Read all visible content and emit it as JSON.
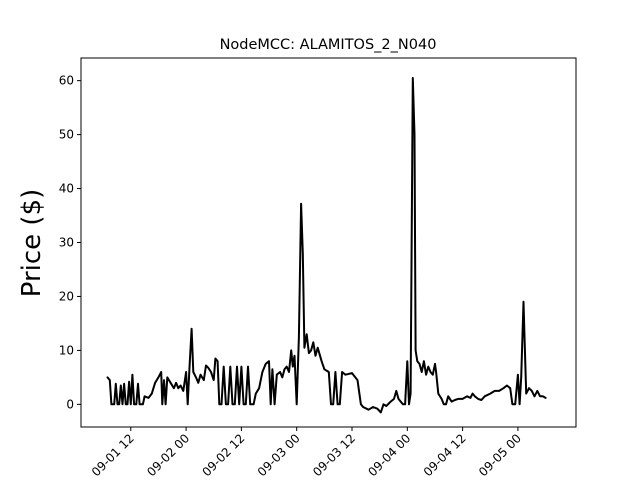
{
  "chart_data": {
    "type": "line",
    "title": "NodeMCC: ALAMITOS_2_N040",
    "xlabel": "",
    "ylabel": "Price ($)",
    "ylim": [
      -4.2,
      64.2
    ],
    "xlim": [
      -0.9,
      8.05
    ],
    "grid": false,
    "x_ticks": [
      {
        "value": 0,
        "label": "09-01 12"
      },
      {
        "value": 1,
        "label": "09-02 00"
      },
      {
        "value": 2,
        "label": "09-02 12"
      },
      {
        "value": 3,
        "label": "09-03 00"
      },
      {
        "value": 4,
        "label": "09-03 12"
      },
      {
        "value": 5,
        "label": "09-04 00"
      },
      {
        "value": 6,
        "label": "09-04 12"
      },
      {
        "value": 7,
        "label": "09-05 00"
      }
    ],
    "y_ticks": [
      0,
      10,
      20,
      30,
      40,
      50,
      60
    ],
    "x_unit": "x is time in units of 12 hours; 0 = 2019-09-01 12:00",
    "series": [
      {
        "name": "",
        "color": "#000000",
        "points": [
          [
            -0.42,
            5.0
          ],
          [
            -0.38,
            4.5
          ],
          [
            -0.35,
            0.0
          ],
          [
            -0.3,
            0.0
          ],
          [
            -0.27,
            3.8
          ],
          [
            -0.24,
            0.0
          ],
          [
            -0.21,
            0.0
          ],
          [
            -0.18,
            3.5
          ],
          [
            -0.15,
            0.0
          ],
          [
            -0.12,
            3.8
          ],
          [
            -0.09,
            0.0
          ],
          [
            -0.06,
            0.0
          ],
          [
            -0.03,
            4.2
          ],
          [
            0.0,
            0.0
          ],
          [
            0.03,
            5.5
          ],
          [
            0.06,
            0.0
          ],
          [
            0.1,
            0.0
          ],
          [
            0.13,
            3.8
          ],
          [
            0.16,
            0.0
          ],
          [
            0.22,
            0.0
          ],
          [
            0.25,
            1.5
          ],
          [
            0.32,
            1.2
          ],
          [
            0.38,
            2.0
          ],
          [
            0.44,
            4.0
          ],
          [
            0.5,
            5.0
          ],
          [
            0.55,
            6.0
          ],
          [
            0.57,
            0.0
          ],
          [
            0.6,
            4.5
          ],
          [
            0.63,
            0.0
          ],
          [
            0.66,
            5.0
          ],
          [
            0.72,
            4.0
          ],
          [
            0.78,
            3.0
          ],
          [
            0.82,
            4.0
          ],
          [
            0.86,
            3.0
          ],
          [
            0.9,
            3.5
          ],
          [
            0.95,
            2.5
          ],
          [
            1.0,
            6.0
          ],
          [
            1.03,
            0.0
          ],
          [
            1.06,
            6.5
          ],
          [
            1.1,
            14.0
          ],
          [
            1.13,
            6.0
          ],
          [
            1.18,
            5.0
          ],
          [
            1.22,
            4.0
          ],
          [
            1.26,
            5.5
          ],
          [
            1.32,
            4.5
          ],
          [
            1.36,
            7.2
          ],
          [
            1.4,
            6.8
          ],
          [
            1.45,
            6.0
          ],
          [
            1.5,
            4.5
          ],
          [
            1.53,
            8.5
          ],
          [
            1.57,
            8.0
          ],
          [
            1.6,
            0.0
          ],
          [
            1.64,
            0.0
          ],
          [
            1.68,
            7.0
          ],
          [
            1.72,
            0.0
          ],
          [
            1.76,
            0.0
          ],
          [
            1.8,
            7.0
          ],
          [
            1.84,
            0.0
          ],
          [
            1.88,
            0.0
          ],
          [
            1.92,
            7.0
          ],
          [
            1.96,
            0.0
          ],
          [
            2.0,
            7.0
          ],
          [
            2.04,
            0.0
          ],
          [
            2.08,
            0.0
          ],
          [
            2.12,
            7.0
          ],
          [
            2.16,
            0.0
          ],
          [
            2.22,
            0.0
          ],
          [
            2.26,
            2.0
          ],
          [
            2.32,
            3.0
          ],
          [
            2.38,
            6.0
          ],
          [
            2.44,
            7.5
          ],
          [
            2.5,
            8.0
          ],
          [
            2.53,
            0.0
          ],
          [
            2.56,
            6.5
          ],
          [
            2.6,
            0.0
          ],
          [
            2.64,
            5.5
          ],
          [
            2.7,
            6.0
          ],
          [
            2.74,
            5.0
          ],
          [
            2.78,
            6.5
          ],
          [
            2.82,
            7.0
          ],
          [
            2.86,
            6.0
          ],
          [
            2.9,
            10.0
          ],
          [
            2.93,
            7.0
          ],
          [
            2.96,
            9.0
          ],
          [
            3.0,
            0.0
          ],
          [
            3.04,
            12.5
          ],
          [
            3.08,
            37.2
          ],
          [
            3.11,
            28.0
          ],
          [
            3.14,
            10.5
          ],
          [
            3.18,
            13.0
          ],
          [
            3.22,
            9.5
          ],
          [
            3.26,
            10.0
          ],
          [
            3.3,
            11.5
          ],
          [
            3.34,
            9.0
          ],
          [
            3.38,
            10.5
          ],
          [
            3.45,
            8.0
          ],
          [
            3.5,
            6.5
          ],
          [
            3.58,
            6.0
          ],
          [
            3.62,
            0.0
          ],
          [
            3.66,
            0.0
          ],
          [
            3.7,
            6.0
          ],
          [
            3.74,
            0.0
          ],
          [
            3.78,
            0.0
          ],
          [
            3.82,
            6.0
          ],
          [
            3.88,
            5.5
          ],
          [
            4.0,
            5.8
          ],
          [
            4.1,
            4.5
          ],
          [
            4.16,
            0.0
          ],
          [
            4.2,
            -0.5
          ],
          [
            4.3,
            -1.0
          ],
          [
            4.38,
            -0.5
          ],
          [
            4.46,
            -0.8
          ],
          [
            4.52,
            -1.5
          ],
          [
            4.57,
            0.0
          ],
          [
            4.62,
            -0.3
          ],
          [
            4.7,
            0.5
          ],
          [
            4.76,
            1.0
          ],
          [
            4.8,
            2.5
          ],
          [
            4.84,
            1.0
          ],
          [
            4.88,
            0.5
          ],
          [
            4.92,
            0.0
          ],
          [
            4.96,
            0.0
          ],
          [
            5.0,
            8.0
          ],
          [
            5.03,
            0.0
          ],
          [
            5.06,
            2.0
          ],
          [
            5.1,
            60.5
          ],
          [
            5.13,
            50.0
          ],
          [
            5.15,
            10.0
          ],
          [
            5.18,
            8.0
          ],
          [
            5.22,
            7.5
          ],
          [
            5.26,
            6.0
          ],
          [
            5.3,
            8.0
          ],
          [
            5.34,
            5.5
          ],
          [
            5.38,
            7.0
          ],
          [
            5.42,
            6.0
          ],
          [
            5.46,
            5.5
          ],
          [
            5.5,
            7.5
          ],
          [
            5.52,
            6.0
          ],
          [
            5.56,
            2.0
          ],
          [
            5.62,
            1.0
          ],
          [
            5.66,
            0.0
          ],
          [
            5.7,
            0.0
          ],
          [
            5.74,
            1.5
          ],
          [
            5.8,
            0.5
          ],
          [
            5.86,
            0.8
          ],
          [
            5.92,
            1.0
          ],
          [
            6.0,
            1.0
          ],
          [
            6.08,
            1.5
          ],
          [
            6.14,
            1.2
          ],
          [
            6.18,
            2.0
          ],
          [
            6.22,
            1.5
          ],
          [
            6.28,
            1.0
          ],
          [
            6.34,
            0.8
          ],
          [
            6.4,
            1.5
          ],
          [
            6.5,
            2.0
          ],
          [
            6.58,
            2.5
          ],
          [
            6.66,
            2.5
          ],
          [
            6.74,
            3.0
          ],
          [
            6.8,
            3.5
          ],
          [
            6.86,
            3.0
          ],
          [
            6.9,
            0.0
          ],
          [
            6.95,
            0.0
          ],
          [
            7.0,
            5.5
          ],
          [
            7.03,
            0.0
          ],
          [
            7.06,
            5.0
          ],
          [
            7.1,
            19.0
          ],
          [
            7.12,
            12.0
          ],
          [
            7.15,
            2.0
          ],
          [
            7.2,
            3.0
          ],
          [
            7.25,
            2.5
          ],
          [
            7.3,
            1.5
          ],
          [
            7.35,
            2.5
          ],
          [
            7.4,
            1.5
          ],
          [
            7.45,
            1.5
          ],
          [
            7.5,
            1.2
          ]
        ]
      }
    ]
  }
}
